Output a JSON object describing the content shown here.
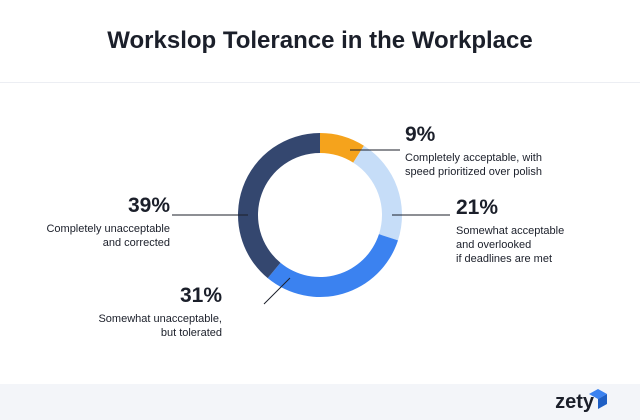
{
  "chart_data": {
    "type": "donut",
    "title": "Workslop Tolerance in the Workplace",
    "categories": [
      "Completely acceptable, with\nspeed prioritized over polish",
      "Somewhat acceptable\nand overlooked\nif deadlines are met",
      "Somewhat unacceptable,\nbut tolerated",
      "Completely unacceptable\nand corrected"
    ],
    "values": [
      9,
      21,
      31,
      39
    ],
    "value_labels": [
      "9%",
      "21%",
      "31%",
      "39%"
    ],
    "colors": [
      "#f5a31c",
      "#c6ddf8",
      "#3b82f0",
      "#34476f"
    ]
  },
  "brand": "zety"
}
